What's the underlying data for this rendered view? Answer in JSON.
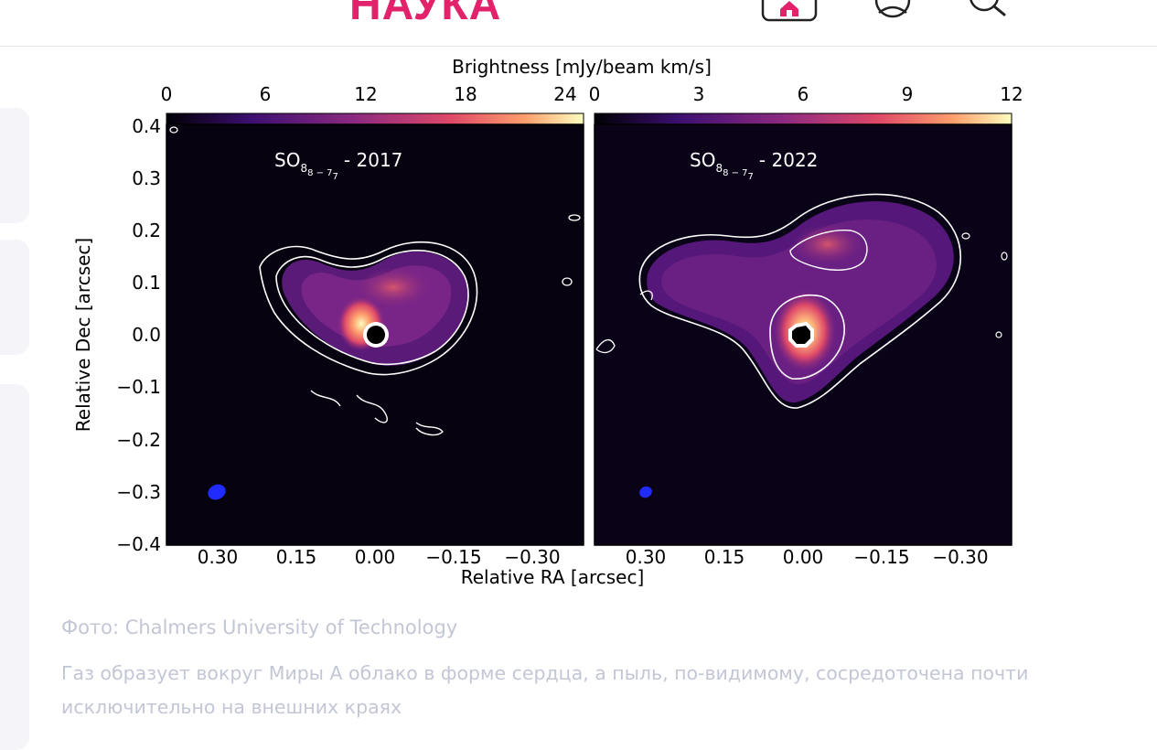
{
  "header": {
    "site_title": "НАУКА",
    "icons": [
      "home-icon",
      "user-icon",
      "search-icon"
    ],
    "brand_color": "#e2236b"
  },
  "figure": {
    "colorbar_label": "Brightness [mJy/beam km/s]",
    "xlabel": "Relative RA [arcsec]",
    "ylabel": "Relative Dec [arcsec]",
    "y_ticks": [
      "0.4",
      "0.3",
      "0.2",
      "0.1",
      "0.0",
      "−0.1",
      "−0.2",
      "−0.3",
      "−0.4"
    ],
    "panels": [
      {
        "label_base": "SO",
        "label_sub": "8",
        "label_subsub": "8 − 7",
        "label_subsub2": "7",
        "label_year": "- 2017",
        "colorbar_ticks": [
          "0",
          "6",
          "12",
          "18",
          "24"
        ],
        "x_ticks": [
          "0.30",
          "0.15",
          "0.00",
          "−0.15",
          "−0.30"
        ]
      },
      {
        "label_base": "SO",
        "label_sub": "8",
        "label_subsub": "8 − 7",
        "label_subsub2": "7",
        "label_year": "- 2022",
        "colorbar_ticks": [
          "0",
          "3",
          "6",
          "9",
          "12"
        ],
        "x_ticks": [
          "0.30",
          "0.15",
          "0.00",
          "−0.15",
          "−0.30"
        ]
      }
    ],
    "colormap": [
      "#000004",
      "#3b0f70",
      "#8c2981",
      "#de4968",
      "#fe9f6d",
      "#fcfdbf"
    ],
    "beam_color": "#1f2bff"
  },
  "caption": {
    "credit": "Фото: Chalmers University of Technology",
    "description": "Газ образует вокруг Миры А облако в форме сердца, а пыль, по-видимому, сосредоточена почти исключительно на внешних краях"
  }
}
